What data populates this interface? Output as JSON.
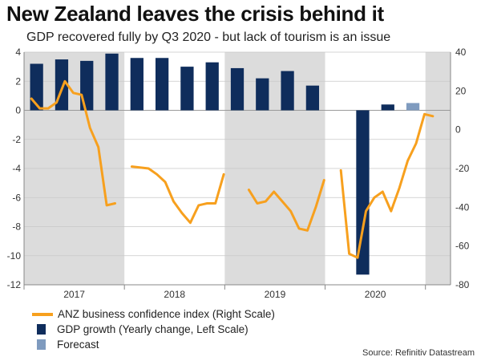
{
  "title": "New Zealand leaves the crisis behind it",
  "subtitle": "GDP recovered fully by Q3 2020 - but lack of tourism is an issue",
  "source": "Source: Refinitiv Datastream",
  "colors": {
    "confidence_line": "#f7a01e",
    "gdp_bar": "#0f2d5c",
    "forecast_bar": "#7f9bbf",
    "shade": "#dcdcdc"
  },
  "chart_data": {
    "type": "bar+line",
    "years": [
      "2017",
      "2018",
      "2019",
      "2020"
    ],
    "shaded_years": [
      "2017",
      "2019",
      "2021"
    ],
    "left_axis": {
      "label": "GDP growth (Yearly change, Left Scale)",
      "ylim": [
        -12,
        4
      ],
      "ticks": [
        "4",
        "2",
        "0",
        "-2",
        "-4",
        "-6",
        "-8",
        "-10",
        "-12"
      ]
    },
    "right_axis": {
      "label": "ANZ business confidence index (Right Scale)",
      "ylim": [
        -80,
        40
      ],
      "ticks": [
        "40",
        "20",
        "0",
        "-20",
        "-40",
        "-60",
        "-80"
      ]
    },
    "gdp_growth": {
      "name": "GDP growth (Yearly change, Left Scale)",
      "categories": [
        "2017Q1",
        "2017Q2",
        "2017Q3",
        "2017Q4",
        "2018Q1",
        "2018Q2",
        "2018Q3",
        "2018Q4",
        "2019Q1",
        "2019Q2",
        "2019Q3",
        "2019Q4",
        "2020Q1",
        "2020Q2",
        "2020Q3",
        "2020Q4"
      ],
      "values": [
        3.2,
        3.5,
        3.4,
        3.9,
        3.6,
        3.6,
        3.0,
        3.3,
        2.9,
        2.2,
        2.7,
        1.7,
        null,
        -11.3,
        0.4,
        null
      ]
    },
    "forecast": {
      "name": "Forecast",
      "categories": [
        "2020Q4"
      ],
      "values": [
        0.5
      ]
    },
    "business_confidence": {
      "name": "ANZ business confidence index (Right Scale)",
      "x_month_index": [
        0,
        1,
        2,
        3,
        4,
        5,
        6,
        7,
        8,
        9,
        10,
        11,
        12,
        14,
        15,
        16,
        17,
        18,
        19,
        20,
        21,
        22,
        23,
        24,
        26,
        27,
        28,
        29,
        30,
        31,
        32,
        33,
        34,
        35,
        36,
        37,
        38,
        39,
        40,
        41,
        42,
        43,
        44,
        45,
        46,
        47,
        48
      ],
      "values": [
        16,
        11,
        11,
        14,
        25,
        19,
        18,
        1,
        -9,
        -39,
        -38,
        null,
        -19,
        -20,
        -23,
        -27,
        -37,
        -43,
        -48,
        -39,
        -38,
        -38,
        -23,
        null,
        -31,
        -38,
        -37,
        -32,
        -37,
        -42,
        -51,
        -52,
        -40,
        -26,
        null,
        -21,
        -64,
        -66,
        -42,
        -35,
        -32,
        -42,
        -30,
        -16,
        -7,
        8,
        7
      ]
    }
  },
  "legend": [
    {
      "kind": "line",
      "label": "ANZ business confidence index (Right Scale)"
    },
    {
      "kind": "bar",
      "label": "GDP growth (Yearly change, Left Scale)"
    },
    {
      "kind": "forecast",
      "label": "Forecast"
    }
  ]
}
